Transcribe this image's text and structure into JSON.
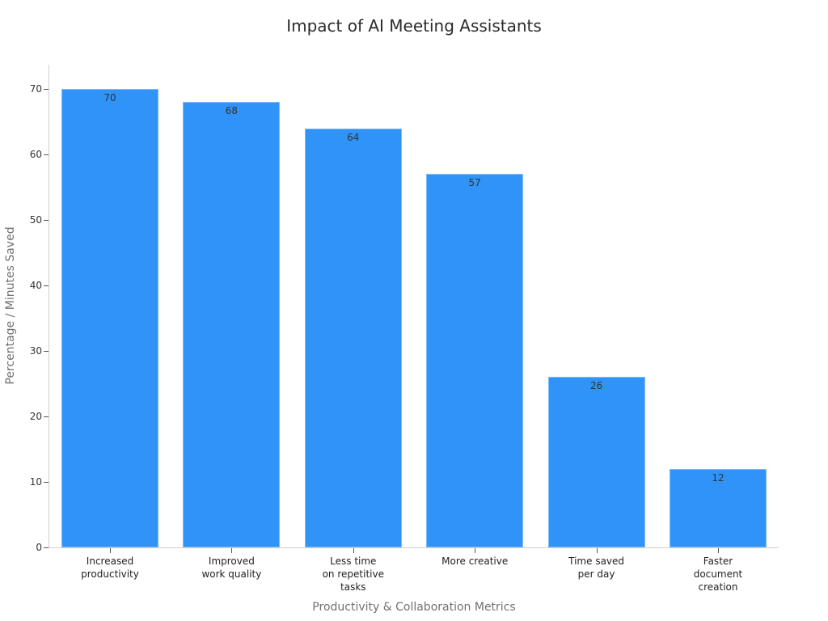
{
  "chart_data": {
    "type": "bar",
    "title": "Impact of AI Meeting Assistants",
    "xlabel": "Productivity & Collaboration Metrics",
    "ylabel": "Percentage / Minutes Saved",
    "categories": [
      "Increased\nproductivity",
      "Improved\nwork quality",
      "Less time\non repetitive\ntasks",
      "More creative",
      "Time saved\nper day",
      "Faster\ndocument\ncreation"
    ],
    "values": [
      70,
      68,
      64,
      57,
      26,
      12
    ],
    "data_labels": [
      "70",
      "68",
      "64",
      "57",
      "26",
      "12"
    ],
    "yticks": [
      "0",
      "10",
      "20",
      "30",
      "40",
      "50",
      "60",
      "70"
    ],
    "ylim": [
      0,
      74
    ],
    "grid": false,
    "legend": null,
    "bar_color": "#2f93f7"
  }
}
